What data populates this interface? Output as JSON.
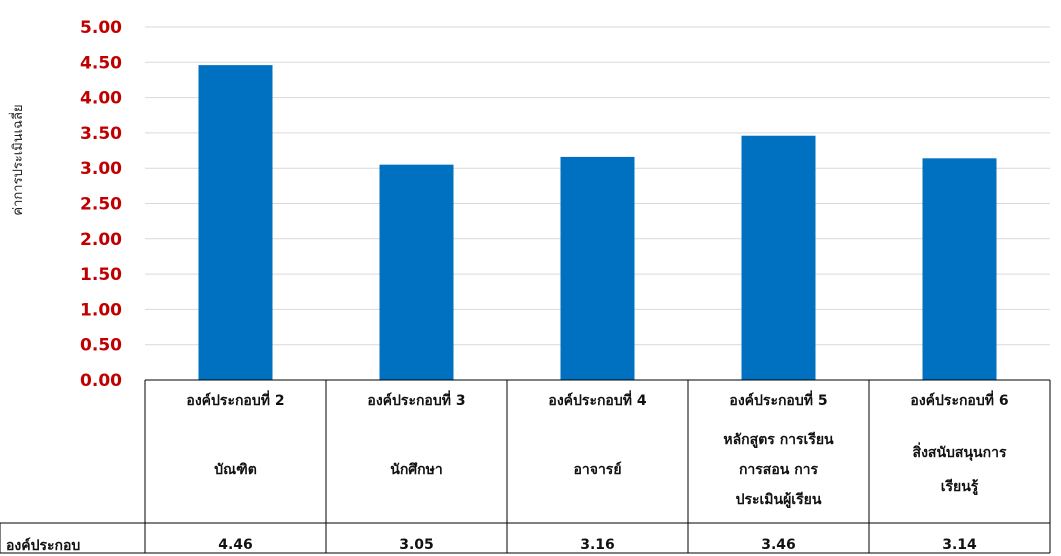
{
  "chart_data": {
    "type": "bar",
    "title": "",
    "ylabel": "ค่าการประเมินเฉลี่ย",
    "xlabel": "",
    "ylim": [
      0,
      5
    ],
    "yticks": [
      "0.00",
      "0.50",
      "1.00",
      "1.50",
      "2.00",
      "2.50",
      "3.00",
      "3.50",
      "4.00",
      "4.50",
      "5.00"
    ],
    "grid": true,
    "categories": [
      [
        "องค์ประกอบที่ 2",
        "บัณฑิต"
      ],
      [
        "องค์ประกอบที่ 3",
        "นักศึกษา"
      ],
      [
        "องค์ประกอบที่ 4",
        "อาจารย์"
      ],
      [
        "องค์ประกอบที่ 5",
        "หลักสูตร การเรียน",
        "การสอน การ",
        "ประเมินผู้เรียน"
      ],
      [
        "องค์ประกอบที่ 6",
        "สิ่งสนับสนุนการ",
        "เรียนรู้"
      ]
    ],
    "series": [
      {
        "name": "องค์ประกอบ",
        "values": [
          4.46,
          3.05,
          3.16,
          3.46,
          3.14
        ],
        "labels": [
          "4.46",
          "3.05",
          "3.16",
          "3.46",
          "3.14"
        ]
      }
    ],
    "bar_color": "#0070c0",
    "tick_color": "#c00000",
    "grid_color": "#d9d9d9"
  }
}
